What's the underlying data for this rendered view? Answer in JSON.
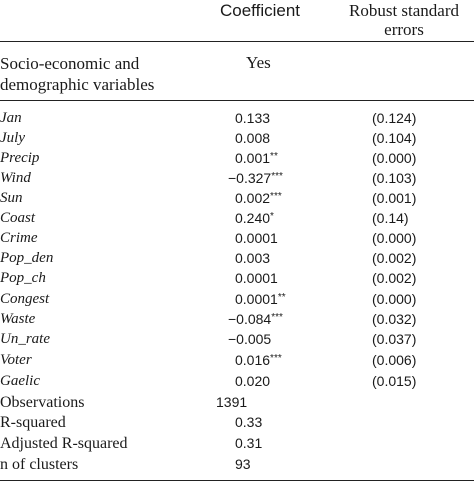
{
  "header": {
    "coefficient": "Coefficient",
    "robust_se_line1": "Robust standard",
    "robust_se_line2": "errors"
  },
  "section": {
    "label_line1": "Socio-economic and",
    "label_line2": "demographic variables",
    "value": "Yes"
  },
  "rows": [
    {
      "name": "Jan",
      "coef": "0.133",
      "stars": "",
      "se": "(0.124)"
    },
    {
      "name": "July",
      "coef": "0.008",
      "stars": "",
      "se": "(0.104)"
    },
    {
      "name": "Precip",
      "coef": "0.001",
      "stars": "**",
      "se": "(0.000)"
    },
    {
      "name": "Wind",
      "coef": "−0.327",
      "stars": "***",
      "se": "(0.103)"
    },
    {
      "name": "Sun",
      "coef": "0.002",
      "stars": "***",
      "se": "(0.001)"
    },
    {
      "name": "Coast",
      "coef": "0.240",
      "stars": "*",
      "se": "(0.14)"
    },
    {
      "name": "Crime",
      "coef": "0.0001",
      "stars": "",
      "se": "(0.000)"
    },
    {
      "name": "Pop_den",
      "coef": "0.003",
      "stars": "",
      "se": "(0.002)"
    },
    {
      "name": "Pop_ch",
      "coef": "0.0001",
      "stars": "",
      "se": "(0.002)"
    },
    {
      "name": "Congest",
      "coef": "0.0001",
      "stars": "**",
      "se": "(0.000)"
    },
    {
      "name": "Waste",
      "coef": "−0.084",
      "stars": "***",
      "se": "(0.032)"
    },
    {
      "name": "Un_rate",
      "coef": "−0.005",
      "stars": "",
      "se": "(0.037)"
    },
    {
      "name": "Voter",
      "coef": "0.016",
      "stars": "***",
      "se": "(0.006)"
    },
    {
      "name": "Gaelic",
      "coef": "0.020",
      "stars": "",
      "se": "(0.015)"
    }
  ],
  "stats": [
    {
      "name": "Observations",
      "value": "1391"
    },
    {
      "name": "R-squared",
      "value": "0.33"
    },
    {
      "name": "Adjusted R-squared",
      "value": "0.31"
    },
    {
      "name": "n of clusters",
      "value": "93"
    }
  ]
}
